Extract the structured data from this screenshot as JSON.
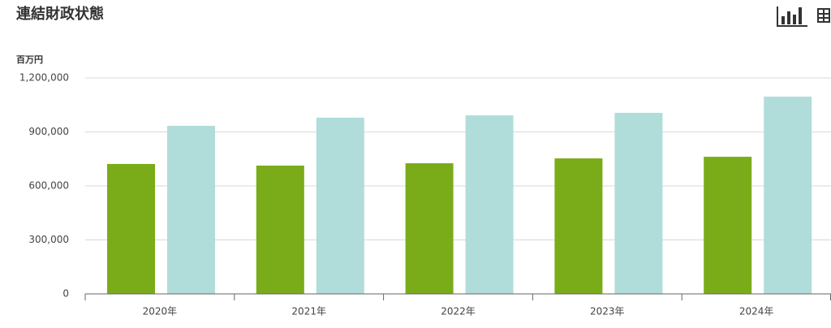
{
  "chart_data": {
    "type": "bar",
    "title": "連結財政状態",
    "y_label": "百万円",
    "categories": [
      "2020年",
      "2021年",
      "2022年",
      "2023年",
      "2024年"
    ],
    "series": [
      {
        "color": "#7aac1a",
        "values": [
          722000,
          713000,
          726000,
          753000,
          762000
        ]
      },
      {
        "color": "#b0ddd9",
        "values": [
          934000,
          979000,
          992000,
          1006000,
          1096000
        ]
      }
    ],
    "ylim": [
      0,
      1200000
    ],
    "yticks": [
      0,
      {
        "value": 300000,
        "label": "300,000"
      },
      {
        "value": 600000,
        "label": "600,000"
      },
      {
        "value": 900000,
        "label": "900,000"
      },
      {
        "value": 1200000,
        "label": "1,200,000"
      }
    ],
    "grid": true
  }
}
